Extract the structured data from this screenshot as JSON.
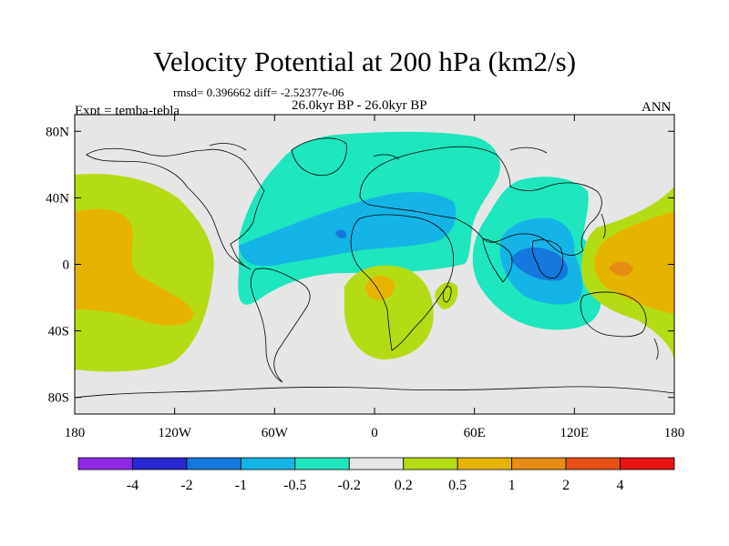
{
  "title": "Velocity Potential at 200 hPa (km2/s)",
  "stats_text": "rmsd= 0.396662  diff= -2.52377e-06",
  "expt_label": "Expt = temba-tebla",
  "subtitle": "26.0kyr BP - 26.0kyr BP",
  "season": "ANN",
  "map": {
    "projection": "cylindrical-equidistant",
    "lon_range": [
      -180,
      180
    ],
    "lat_range": [
      -90,
      90
    ],
    "lat_ticks": [
      {
        "value": 80,
        "label": "80N"
      },
      {
        "value": 40,
        "label": "40N"
      },
      {
        "value": 0,
        "label": "0"
      },
      {
        "value": -40,
        "label": "40S"
      },
      {
        "value": -80,
        "label": "80S"
      }
    ],
    "lon_ticks": [
      {
        "value": -180,
        "label": "180"
      },
      {
        "value": -120,
        "label": "120W"
      },
      {
        "value": -60,
        "label": "60W"
      },
      {
        "value": 0,
        "label": "0"
      },
      {
        "value": 60,
        "label": "60E"
      },
      {
        "value": 120,
        "label": "120E"
      },
      {
        "value": 180,
        "label": "180"
      }
    ]
  },
  "colorbar": {
    "colors": [
      "#8c28e6",
      "#2828d2",
      "#1478dc",
      "#14b4e6",
      "#1ee6be",
      "#e6e6e6",
      "#b4dc14",
      "#e6b400",
      "#e68c14",
      "#e65014",
      "#e61414"
    ],
    "labels": [
      "-4",
      "-2",
      "-1",
      "-0.5",
      "-0.2",
      "0.2",
      "0.5",
      "1",
      "2",
      "4"
    ]
  },
  "colors": {
    "background": "#e6e6e6",
    "neg_02": "#1ee6be",
    "neg_05": "#14b4e6",
    "neg_1": "#1478dc",
    "pos_02": "#b4dc14",
    "pos_05": "#e6b400",
    "pos_1": "#e68c14",
    "coast": "#000000"
  }
}
